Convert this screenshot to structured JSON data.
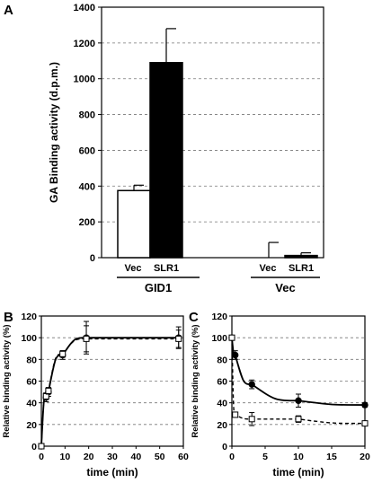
{
  "chart_data": [
    {
      "panel": "A",
      "type": "bar",
      "ylabel": "GA Binding activity (d.p.m.)",
      "ylim": [
        0,
        1400
      ],
      "yticks": [
        0,
        200,
        400,
        600,
        800,
        1000,
        1200,
        1400
      ],
      "grid": "horizontal dashed",
      "groups": [
        {
          "label": "GID1",
          "bars": [
            {
              "label": "Vec",
              "value": 375,
              "error": 30,
              "fill": "#ffffff"
            },
            {
              "label": "SLR1",
              "value": 1090,
              "error": 190,
              "fill": "#000000"
            }
          ]
        },
        {
          "label": "Vec",
          "bars": [
            {
              "label": "Vec",
              "value": 0,
              "error": 85,
              "fill": "#ffffff"
            },
            {
              "label": "SLR1",
              "value": 12,
              "error": 15,
              "fill": "#000000"
            }
          ]
        }
      ]
    },
    {
      "panel": "B",
      "type": "line",
      "xlabel": "time (min)",
      "ylabel": "Relative binding activity (%)",
      "xlim": [
        0,
        60
      ],
      "ylim": [
        0,
        120
      ],
      "xticks": [
        0,
        10,
        20,
        30,
        40,
        50,
        60
      ],
      "yticks": [
        0,
        20,
        40,
        60,
        80,
        100,
        120
      ],
      "grid": "horizontal dashed",
      "series": [
        {
          "marker": "filled-circle",
          "line": "solid",
          "x": [
            0,
            2,
            3,
            9,
            19,
            58
          ],
          "y": [
            0,
            45,
            50,
            84,
            100,
            100
          ],
          "err": [
            0,
            4,
            4,
            4,
            15,
            10
          ]
        },
        {
          "marker": "open-square",
          "line": "dashed",
          "x": [
            0,
            2,
            3,
            9,
            19,
            58
          ],
          "y": [
            0,
            46,
            51,
            85,
            99,
            99
          ],
          "err": [
            0,
            3,
            3,
            3,
            12,
            8
          ]
        }
      ]
    },
    {
      "panel": "C",
      "type": "line",
      "xlabel": "time (min)",
      "ylabel": "Relative binding activity (%)",
      "xlim": [
        0,
        20
      ],
      "ylim": [
        0,
        120
      ],
      "xticks": [
        0,
        5,
        10,
        15,
        20
      ],
      "yticks": [
        0,
        20,
        40,
        60,
        80,
        100,
        120
      ],
      "grid": "horizontal dashed",
      "series": [
        {
          "marker": "filled-circle",
          "line": "solid",
          "x": [
            0,
            0.5,
            3,
            10,
            20
          ],
          "y": [
            100,
            84,
            57,
            42,
            38
          ],
          "err": [
            0,
            4,
            4,
            6,
            2
          ]
        },
        {
          "marker": "open-square",
          "line": "dashed",
          "x": [
            0,
            0.5,
            3,
            10,
            20
          ],
          "y": [
            100,
            29,
            25,
            25,
            21
          ],
          "err": [
            0,
            2,
            6,
            3,
            2
          ]
        }
      ]
    }
  ]
}
